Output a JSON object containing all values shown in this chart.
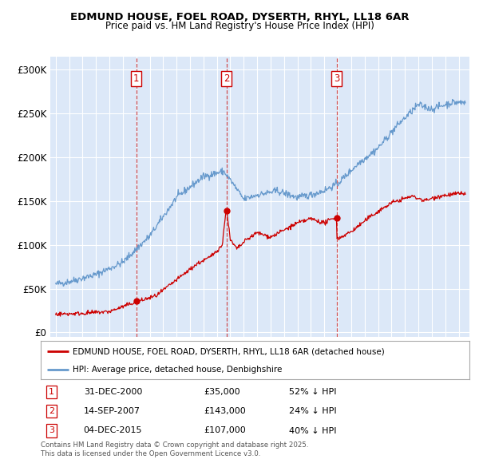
{
  "title": "EDMUND HOUSE, FOEL ROAD, DYSERTH, RHYL, LL18 6AR",
  "subtitle": "Price paid vs. HM Land Registry's House Price Index (HPI)",
  "red_label": "EDMUND HOUSE, FOEL ROAD, DYSERTH, RHYL, LL18 6AR (detached house)",
  "blue_label": "HPI: Average price, detached house, Denbighshire",
  "transactions": [
    {
      "num": 1,
      "date": "31-DEC-2000",
      "price": 35000,
      "pct": "52%",
      "dir": "↓",
      "year": 2001.0
    },
    {
      "num": 2,
      "date": "14-SEP-2007",
      "price": 143000,
      "pct": "24%",
      "dir": "↓",
      "year": 2007.71
    },
    {
      "num": 3,
      "date": "04-DEC-2015",
      "price": 107000,
      "pct": "40%",
      "dir": "↓",
      "year": 2015.92
    }
  ],
  "ylabel_ticks": [
    "£0",
    "£50K",
    "£100K",
    "£150K",
    "£200K",
    "£250K",
    "£300K"
  ],
  "ytick_values": [
    0,
    50000,
    100000,
    150000,
    200000,
    250000,
    300000
  ],
  "ylim": [
    -5000,
    315000
  ],
  "red_color": "#cc0000",
  "blue_color": "#6699cc",
  "vline_color": "#cc3333",
  "background_color": "#dce8f8",
  "grid_color": "#ffffff",
  "footer": "Contains HM Land Registry data © Crown copyright and database right 2025.\nThis data is licensed under the Open Government Licence v3.0."
}
